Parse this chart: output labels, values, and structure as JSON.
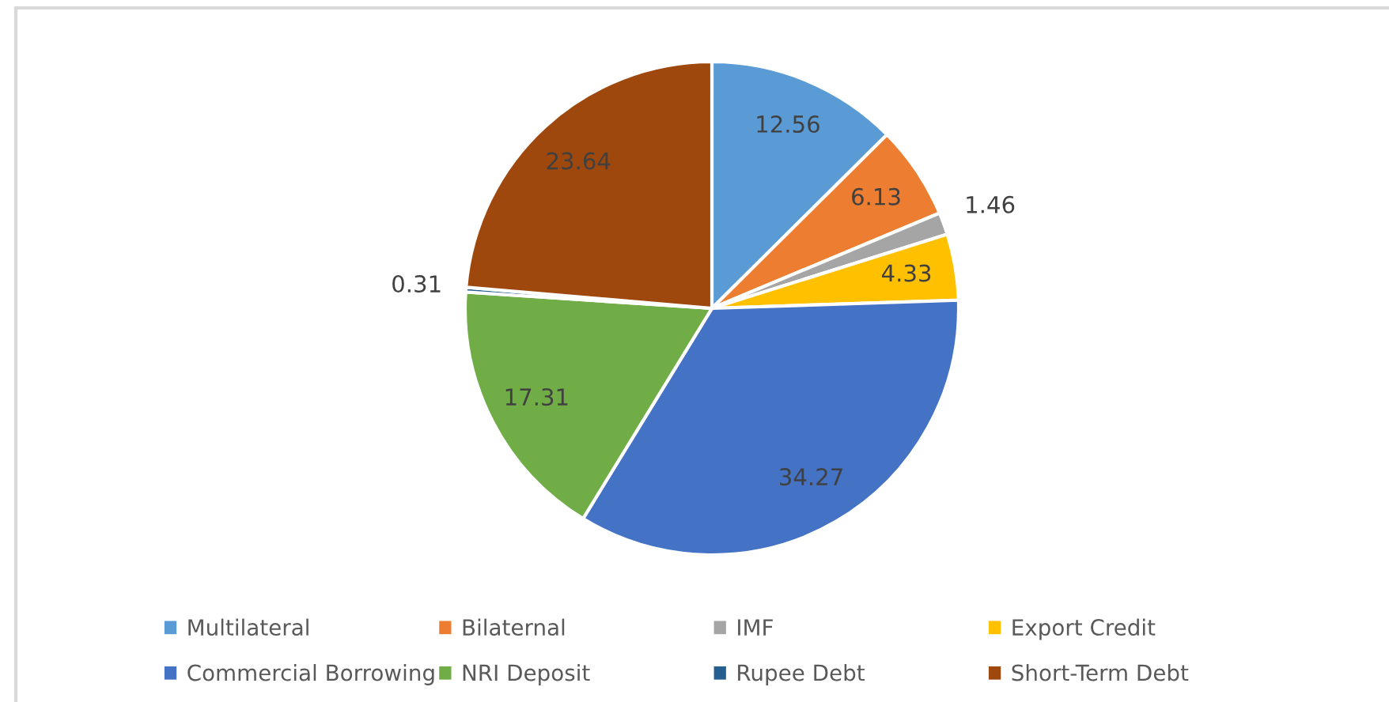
{
  "chart_data": {
    "type": "pie",
    "categories": [
      "Multilateral",
      "Bilaternal",
      "IMF",
      "Export Credit",
      "Commercial Borrowing",
      "NRI Deposit",
      "Rupee Debt",
      "Short-Term Debt"
    ],
    "values": [
      12.56,
      6.13,
      1.46,
      4.33,
      34.27,
      17.31,
      0.31,
      23.64
    ],
    "colors": [
      "#5b9bd5",
      "#ed7d31",
      "#a5a5a5",
      "#ffc000",
      "#4472c4",
      "#70ad47",
      "#255e91",
      "#9e480e"
    ],
    "data_labels": true,
    "legend": "bottom"
  }
}
